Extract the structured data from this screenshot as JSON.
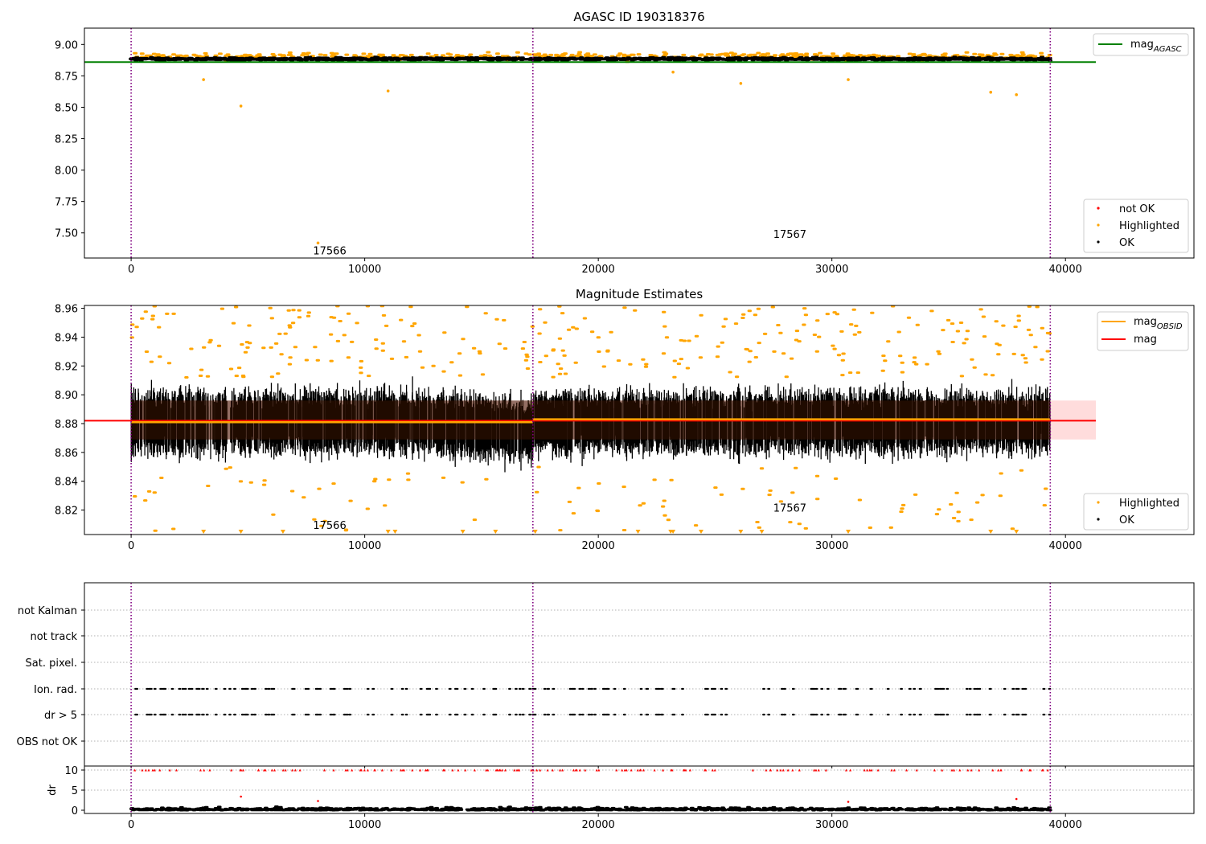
{
  "colors": {
    "ok": "#000000",
    "highlighted": "#ffa500",
    "not_ok": "#ff0000",
    "mag_agasc": "#008000",
    "mag_obsid": "#ffa500",
    "mag": "#ff0000",
    "band": "#ffd6d6",
    "obs_boundary": "#800080",
    "grid": "#b0b0b0"
  },
  "chart_data": [
    {
      "type": "scatter",
      "title": "AGASC ID 190318376",
      "xlim": [
        -2000,
        45500
      ],
      "ylim": [
        7.3,
        9.13
      ],
      "xticks": [
        0,
        10000,
        20000,
        30000,
        40000
      ],
      "yticks": [
        7.5,
        7.75,
        8.0,
        8.25,
        8.5,
        8.75,
        9.0
      ],
      "ytick_labels": [
        "7.50",
        "7.75",
        "8.00",
        "8.25",
        "8.50",
        "8.75",
        "9.00"
      ],
      "mag_agasc": 8.86,
      "ok_band": {
        "center": 8.885,
        "spread": 0.012
      },
      "obs_boundaries": [
        0,
        17200,
        39350
      ],
      "highlighted_outliers": [
        [
          3100,
          8.72
        ],
        [
          4700,
          8.51
        ],
        [
          8000,
          7.42
        ],
        [
          11000,
          8.63
        ],
        [
          23200,
          8.78
        ],
        [
          26100,
          8.69
        ],
        [
          30700,
          8.72
        ],
        [
          36800,
          8.62
        ],
        [
          37900,
          8.6
        ]
      ],
      "obsid_labels": [
        {
          "text": "17566",
          "x": 8500,
          "y": 7.33
        },
        {
          "text": "17567",
          "x": 28200,
          "y": 7.46
        }
      ],
      "legend_lines": [
        {
          "label": "mag",
          "sub": "AGASC",
          "color": "#008000"
        }
      ],
      "legend_points": [
        {
          "label": "not OK",
          "color": "#ff0000"
        },
        {
          "label": "Highlighted",
          "color": "#ffa500"
        },
        {
          "label": "OK",
          "color": "#000000"
        }
      ]
    },
    {
      "type": "scatter",
      "title": "Magnitude Estimates",
      "xlim": [
        -2000,
        45500
      ],
      "ylim": [
        8.803,
        8.962
      ],
      "xticks": [
        0,
        10000,
        20000,
        30000,
        40000
      ],
      "yticks": [
        8.82,
        8.84,
        8.86,
        8.88,
        8.9,
        8.92,
        8.94,
        8.96
      ],
      "ytick_labels": [
        "8.82",
        "8.84",
        "8.86",
        "8.88",
        "8.90",
        "8.92",
        "8.94",
        "8.96"
      ],
      "mag": 8.882,
      "mag_band": [
        8.869,
        8.896
      ],
      "mag_obsid": [
        {
          "x0": 0,
          "x1": 17200,
          "y": 8.881
        },
        {
          "x0": 17200,
          "x1": 39350,
          "y": 8.883
        }
      ],
      "obs_boundaries": [
        0,
        17200,
        39350
      ],
      "obsid_labels": [
        {
          "text": "17566",
          "x": 8500,
          "y": 8.807
        },
        {
          "text": "17567",
          "x": 28200,
          "y": 8.819
        }
      ],
      "legend_lines": [
        {
          "label": "mag",
          "sub": "OBSID",
          "color": "#ffa500"
        },
        {
          "label": "mag",
          "sub": "",
          "color": "#ff0000"
        }
      ],
      "legend_points": [
        {
          "label": "Highlighted",
          "color": "#ffa500"
        },
        {
          "label": "OK",
          "color": "#000000"
        }
      ]
    },
    {
      "type": "scatter",
      "title": "",
      "xlim": [
        -2000,
        45500
      ],
      "categories": [
        "not Kalman",
        "not track",
        "Sat. pixel.",
        "Ion. rad.",
        "dr > 5",
        "OBS not OK"
      ],
      "flagged_rows": [
        "Ion. rad.",
        "dr > 5"
      ],
      "obs_boundaries": [
        0,
        17200,
        39350
      ]
    },
    {
      "type": "scatter",
      "ylabel": "dr",
      "xlim": [
        -2000,
        45500
      ],
      "ylim": [
        -0.8,
        11
      ],
      "yticks": [
        0,
        5,
        10
      ],
      "ytick_labels": [
        "0",
        "5",
        "10"
      ],
      "xticks": [
        0,
        10000,
        20000,
        30000,
        40000
      ],
      "xtick_labels": [
        "0",
        "10000",
        "20000",
        "30000",
        "40000"
      ],
      "dr_clip": 10,
      "obs_boundaries": [
        0,
        17200,
        39350
      ]
    }
  ]
}
